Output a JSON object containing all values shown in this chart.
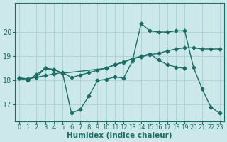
{
  "bg_color": "#cce8ea",
  "grid_color": "#aed4d6",
  "line_color": "#1a6e65",
  "line_width": 1.0,
  "marker": "D",
  "marker_size": 2.5,
  "xlabel": "Humidex (Indice chaleur)",
  "xlabel_fontsize": 7.5,
  "ytick_fontsize": 7,
  "xtick_fontsize": 6,
  "xlim": [
    -0.5,
    23.5
  ],
  "ylim": [
    16.3,
    21.2
  ],
  "yticks": [
    17,
    18,
    19,
    20
  ],
  "xticks": [
    0,
    1,
    2,
    3,
    4,
    5,
    6,
    7,
    8,
    9,
    10,
    11,
    12,
    13,
    14,
    15,
    16,
    17,
    18,
    19,
    20,
    21,
    22,
    23
  ],
  "line1_x": [
    0,
    1,
    2,
    3,
    4,
    5,
    6,
    7,
    8,
    9,
    10,
    11,
    12,
    13,
    14,
    15,
    16,
    17,
    18,
    19,
    20,
    21,
    22,
    23
  ],
  "line1_y": [
    18.1,
    18.0,
    18.25,
    18.5,
    18.45,
    18.3,
    16.65,
    16.8,
    17.35,
    18.0,
    18.05,
    18.15,
    18.1,
    18.8,
    20.35,
    20.05,
    20.0,
    20.0,
    20.05,
    20.05,
    18.55,
    17.65,
    16.9,
    16.65
  ],
  "line2_x": [
    0,
    1,
    2,
    3,
    4,
    5,
    10,
    11,
    12,
    13,
    14,
    15,
    16,
    17,
    18,
    19
  ],
  "line2_y": [
    18.1,
    18.07,
    18.15,
    18.5,
    18.45,
    18.3,
    18.5,
    18.65,
    18.75,
    18.9,
    19.0,
    19.1,
    18.85,
    18.65,
    18.55,
    18.5
  ],
  "line3_x": [
    0,
    1,
    2,
    3,
    4,
    5,
    6,
    7,
    8,
    9,
    10,
    11,
    12,
    13,
    14,
    15,
    16,
    17,
    18,
    19,
    20,
    21,
    22,
    23
  ],
  "line3_y": [
    18.1,
    18.07,
    18.13,
    18.2,
    18.27,
    18.33,
    18.12,
    18.22,
    18.32,
    18.42,
    18.52,
    18.65,
    18.77,
    18.9,
    18.97,
    19.07,
    19.12,
    19.22,
    19.3,
    19.35,
    19.35,
    19.3,
    19.3,
    19.3
  ]
}
